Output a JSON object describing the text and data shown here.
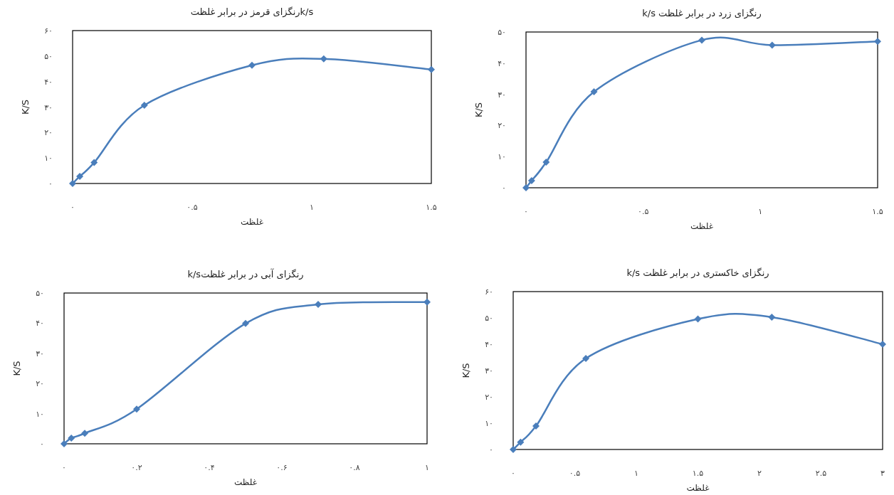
{
  "chart_data": [
    {
      "type": "line",
      "title": "k/sرنگزای قرمز در برابر غلظت",
      "xlabel": "غلظت",
      "ylabel": "K/S",
      "xlim": [
        0,
        1.5
      ],
      "ylim": [
        0,
        60
      ],
      "xticks": [
        {
          "value": 0,
          "label": "۰"
        },
        {
          "value": 0.5,
          "label": "۰.۵"
        },
        {
          "value": 1,
          "label": "۱"
        },
        {
          "value": 1.5,
          "label": "۱.۵"
        }
      ],
      "yticks": [
        {
          "value": 0,
          "label": "۰"
        },
        {
          "value": 10,
          "label": "۱۰"
        },
        {
          "value": 20,
          "label": "۲۰"
        },
        {
          "value": 30,
          "label": "۳۰"
        },
        {
          "value": 40,
          "label": "۴۰"
        },
        {
          "value": 50,
          "label": "۵۰"
        },
        {
          "value": 60,
          "label": "۶۰"
        }
      ],
      "x": [
        0,
        0.03,
        0.09,
        0.3,
        0.75,
        1.05,
        1.5
      ],
      "series": [
        {
          "color": "#4a7ebb",
          "values": [
            0,
            2.8,
            8.2,
            30.7,
            46.4,
            48.9,
            44.7
          ]
        }
      ],
      "marker": "diamond",
      "grid": false
    },
    {
      "type": "line",
      "title": "رنگزای زرد در برابر غلظت  k/s",
      "xlabel": "غلظت",
      "ylabel": "K/S",
      "xlim": [
        0,
        1.5
      ],
      "ylim": [
        0,
        50
      ],
      "xticks": [
        {
          "value": 0,
          "label": "۰"
        },
        {
          "value": 0.5,
          "label": "۰.۵"
        },
        {
          "value": 1,
          "label": "۱"
        },
        {
          "value": 1.5,
          "label": "۱.۵"
        }
      ],
      "yticks": [
        {
          "value": 0,
          "label": "۰"
        },
        {
          "value": 10,
          "label": "۱۰"
        },
        {
          "value": 20,
          "label": "۲۰"
        },
        {
          "value": 30,
          "label": "۳۰"
        },
        {
          "value": 40,
          "label": "۴۰"
        },
        {
          "value": 50,
          "label": "۵۰"
        }
      ],
      "x": [
        0,
        0.024,
        0.086,
        0.29,
        0.75,
        1.05,
        1.5
      ],
      "series": [
        {
          "color": "#4a7ebb",
          "values": [
            0,
            2.3,
            8.2,
            30.8,
            47.4,
            45.8,
            47.0
          ]
        }
      ],
      "marker": "diamond",
      "grid": false
    },
    {
      "type": "line",
      "title": "رنگزای آبی در برابر غلظتk/s",
      "xlabel": "غلظت",
      "ylabel": "K/S",
      "xlim": [
        0,
        1
      ],
      "ylim": [
        0,
        50
      ],
      "xticks": [
        {
          "value": 0,
          "label": "۰"
        },
        {
          "value": 0.2,
          "label": "۰.۲"
        },
        {
          "value": 0.4,
          "label": "۰.۴"
        },
        {
          "value": 0.6,
          "label": "۰.۶"
        },
        {
          "value": 0.8,
          "label": "۰.۸"
        },
        {
          "value": 1,
          "label": "۱"
        }
      ],
      "yticks": [
        {
          "value": 0,
          "label": "۰"
        },
        {
          "value": 10,
          "label": "۱۰"
        },
        {
          "value": 20,
          "label": "۲۰"
        },
        {
          "value": 30,
          "label": "۳۰"
        },
        {
          "value": 40,
          "label": "۴۰"
        },
        {
          "value": 50,
          "label": "۵۰"
        }
      ],
      "x": [
        0,
        0.02,
        0.057,
        0.2,
        0.5,
        0.7,
        1
      ],
      "series": [
        {
          "color": "#4a7ebb",
          "values": [
            0,
            1.9,
            3.5,
            11.5,
            39.9,
            46.2,
            47.0
          ]
        }
      ],
      "marker": "diamond",
      "grid": false
    },
    {
      "type": "line",
      "title": "رنگزای خاکستری در برابر غلظت  k/s",
      "xlabel": "غلظت",
      "ylabel": "K/S",
      "xlim": [
        0,
        3
      ],
      "ylim": [
        0,
        60
      ],
      "xticks": [
        {
          "value": 0,
          "label": "۰"
        },
        {
          "value": 0.5,
          "label": "۰.۵"
        },
        {
          "value": 1,
          "label": "۱"
        },
        {
          "value": 1.5,
          "label": "۱.۵"
        },
        {
          "value": 2,
          "label": "۲"
        },
        {
          "value": 2.5,
          "label": "۲.۵"
        },
        {
          "value": 3,
          "label": "۳"
        }
      ],
      "yticks": [
        {
          "value": 0,
          "label": "۰"
        },
        {
          "value": 10,
          "label": "۱۰"
        },
        {
          "value": 20,
          "label": "۲۰"
        },
        {
          "value": 30,
          "label": "۳۰"
        },
        {
          "value": 40,
          "label": "۴۰"
        },
        {
          "value": 50,
          "label": "۵۰"
        },
        {
          "value": 60,
          "label": "۶۰"
        }
      ],
      "x": [
        0,
        0.06,
        0.185,
        0.59,
        1.5,
        2.1,
        3
      ],
      "series": [
        {
          "color": "#4a7ebb",
          "values": [
            0,
            2.8,
            8.9,
            34.6,
            49.6,
            50.3,
            40.0
          ]
        }
      ],
      "marker": "diamond",
      "grid": false
    }
  ]
}
